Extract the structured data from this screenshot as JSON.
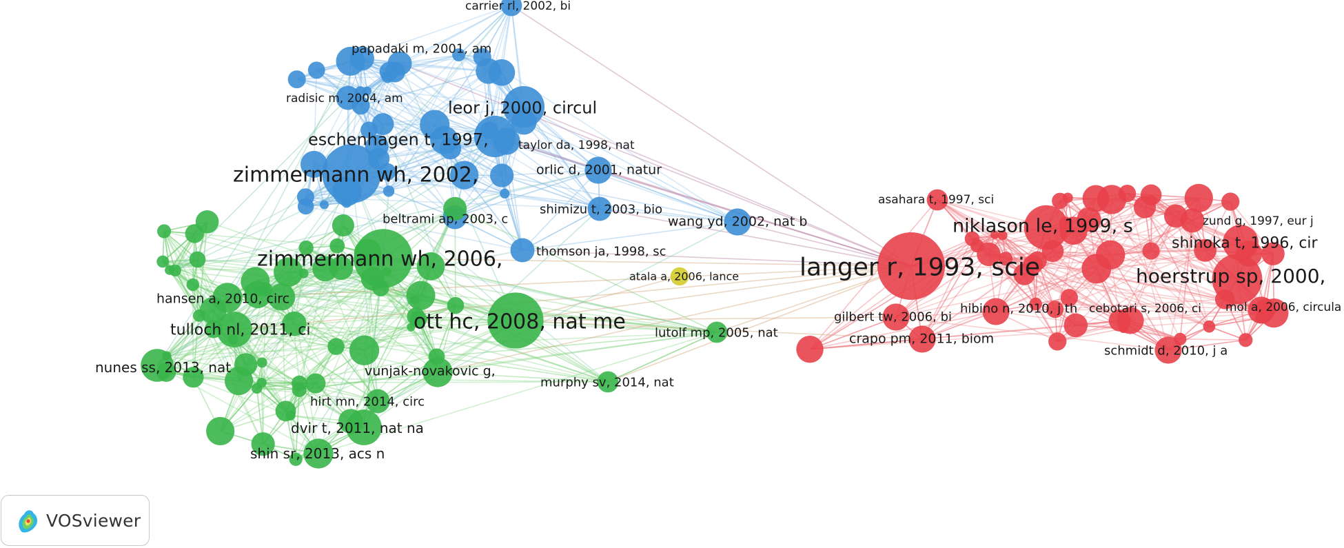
{
  "app": {
    "name": "VOSviewer"
  },
  "colors": {
    "cluster_red": "#e8414b",
    "cluster_green": "#39b54a",
    "cluster_blue": "#3d8fd6",
    "cluster_yellow": "#d4cc2b",
    "edge_red": "#ef7d84",
    "edge_green": "#7cd07c",
    "edge_blue": "#8dc0ec"
  },
  "clusters": [
    {
      "id": "red",
      "color": "#e8414b"
    },
    {
      "id": "green",
      "color": "#39b54a"
    },
    {
      "id": "blue",
      "color": "#3d8fd6"
    },
    {
      "id": "yellow",
      "color": "#d4cc2b"
    }
  ],
  "labeled_nodes": [
    {
      "id": "carrier",
      "label": "carrier rl, 2002, bi",
      "cluster": "blue",
      "size": 0.2
    },
    {
      "id": "papadaki",
      "label": "papadaki m, 2001, am",
      "cluster": "blue",
      "size": 0.25
    },
    {
      "id": "radisic",
      "label": "radisic m, 2004, am",
      "cluster": "blue",
      "size": 0.25
    },
    {
      "id": "leor",
      "label": "leor j, 2000, circul",
      "cluster": "blue",
      "size": 0.55
    },
    {
      "id": "eschenhagen",
      "label": "eschenhagen t, 1997,",
      "cluster": "blue",
      "size": 0.55
    },
    {
      "id": "taylor",
      "label": "taylor da, 1998, nat",
      "cluster": "blue",
      "size": 0.3
    },
    {
      "id": "zimmermann2002",
      "label": "zimmermann wh, 2002,",
      "cluster": "blue",
      "size": 0.85
    },
    {
      "id": "orlic",
      "label": "orlic d, 2001, natur",
      "cluster": "blue",
      "size": 0.3
    },
    {
      "id": "beltrami",
      "label": "beltrami ap, 2003, c",
      "cluster": "blue",
      "size": 0.25
    },
    {
      "id": "shimizu",
      "label": "shimizu t, 2003, bio",
      "cluster": "blue",
      "size": 0.25
    },
    {
      "id": "wang",
      "label": "wang yd, 2002, nat b",
      "cluster": "blue",
      "size": 0.3
    },
    {
      "id": "thomson",
      "label": "thomson ja, 1998, sc",
      "cluster": "blue",
      "size": 0.25
    },
    {
      "id": "zimmermann2006",
      "label": "zimmermann wh, 2006,",
      "cluster": "green",
      "size": 0.85
    },
    {
      "id": "hansen",
      "label": "hansen a, 2010, circ",
      "cluster": "green",
      "size": 0.35
    },
    {
      "id": "tulloch",
      "label": "tulloch nl, 2011, ci",
      "cluster": "green",
      "size": 0.45
    },
    {
      "id": "ott",
      "label": "ott hc, 2008, nat me",
      "cluster": "green",
      "size": 0.8
    },
    {
      "id": "lutolf",
      "label": "lutolf mp, 2005, nat",
      "cluster": "green",
      "size": 0.2
    },
    {
      "id": "nunes",
      "label": "nunes ss, 2013, nat",
      "cluster": "green",
      "size": 0.4
    },
    {
      "id": "vunjak",
      "label": "vunjak-novakovic g,",
      "cluster": "green",
      "size": 0.35
    },
    {
      "id": "murphy",
      "label": "murphy sv, 2014, nat",
      "cluster": "green",
      "size": 0.2
    },
    {
      "id": "hirt",
      "label": "hirt mn, 2014, circ",
      "cluster": "green",
      "size": 0.25
    },
    {
      "id": "dvir",
      "label": "dvir t, 2011, nat na",
      "cluster": "green",
      "size": 0.45
    },
    {
      "id": "shin",
      "label": "shin sr, 2013, acs n",
      "cluster": "green",
      "size": 0.35
    },
    {
      "id": "atala",
      "label": "atala a, 2006, lance",
      "cluster": "yellow",
      "size": 0.15
    },
    {
      "id": "langer",
      "label": "langer r, 1993, scie",
      "cluster": "red",
      "size": 1.0
    },
    {
      "id": "asahara",
      "label": "asahara t, 1997, sci",
      "cluster": "red",
      "size": 0.2
    },
    {
      "id": "niklason",
      "label": "niklason le, 1999, s",
      "cluster": "red",
      "size": 0.6
    },
    {
      "id": "zund",
      "label": "zund g, 1997, eur j",
      "cluster": "red",
      "size": 0.25
    },
    {
      "id": "shinoka",
      "label": "shinoka t, 1996, cir",
      "cluster": "red",
      "size": 0.45
    },
    {
      "id": "hoerstrup",
      "label": "hoerstrup sp, 2000,",
      "cluster": "red",
      "size": 0.7
    },
    {
      "id": "gilbert",
      "label": "gilbert tw, 2006, bi",
      "cluster": "red",
      "size": 0.3
    },
    {
      "id": "hibino",
      "label": "hibino n, 2010, j th",
      "cluster": "red",
      "size": 0.3
    },
    {
      "id": "cebotari",
      "label": "cebotari s, 2006, ci",
      "cluster": "red",
      "size": 0.3
    },
    {
      "id": "mol",
      "label": "mol a, 2006, circula",
      "cluster": "red",
      "size": 0.3
    },
    {
      "id": "crapo",
      "label": "crapo pm, 2011, biom",
      "cluster": "red",
      "size": 0.3
    },
    {
      "id": "schmidt",
      "label": "schmidt d, 2010, j a",
      "cluster": "red",
      "size": 0.3
    }
  ]
}
